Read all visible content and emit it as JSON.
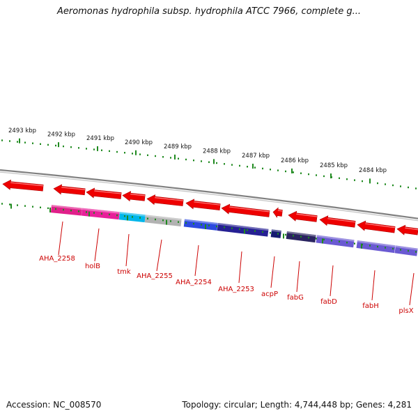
{
  "title": "Aeromonas hydrophila subsp. hydrophila ATCC 7966, complete g...",
  "accession_text": "Accession: NC_008570",
  "topology_text": "Topology: circular; Length: 4,744,448 bp; Genes: 4,281",
  "colors": {
    "arrow": "#ee0000",
    "label": "#cc0000",
    "backbone": "#808080",
    "tick": "#1f8a1f"
  },
  "scale_labels": [
    "2493 kbp",
    "2492 kbp",
    "2491 kbp",
    "2490 kbp",
    "2489 kbp",
    "2488 kbp",
    "2487 kbp",
    "2486 kbp",
    "2485 kbp",
    "2484 kbp"
  ],
  "arrows": [
    {
      "x1": 4,
      "x2": 62
    },
    {
      "x1": 77,
      "x2": 122
    },
    {
      "x1": 124,
      "x2": 174
    },
    {
      "x1": 176,
      "x2": 208
    },
    {
      "x1": 211,
      "x2": 263
    },
    {
      "x1": 267,
      "x2": 316
    },
    {
      "x1": 318,
      "x2": 387
    },
    {
      "x1": 392,
      "x2": 405
    },
    {
      "x1": 414,
      "x2": 455
    },
    {
      "x1": 459,
      "x2": 510
    },
    {
      "x1": 513,
      "x2": 567
    },
    {
      "x1": 570,
      "x2": 600
    }
  ],
  "bars": [
    {
      "x1": 74,
      "x2": 118,
      "color": "#e0208a"
    },
    {
      "x1": 118,
      "x2": 172,
      "color": "#e8209a"
    },
    {
      "x1": 172,
      "x2": 209,
      "color": "#00b6ea"
    },
    {
      "x1": 209,
      "x2": 261,
      "color": "#b2b2b2"
    },
    {
      "x1": 265,
      "x2": 313,
      "color": "#2c4adf"
    },
    {
      "x1": 313,
      "x2": 386,
      "color": "#252093"
    },
    {
      "x1": 390,
      "x2": 404,
      "color": "#141a70"
    },
    {
      "x1": 412,
      "x2": 454,
      "color": "#2a2460"
    },
    {
      "x1": 455,
      "x2": 509,
      "color": "#6a5ad2"
    },
    {
      "x1": 513,
      "x2": 568,
      "color": "#6a5ad2"
    },
    {
      "x1": 568,
      "x2": 600,
      "color": "#6a5ad2"
    }
  ],
  "genes": [
    {
      "name": "AHA_2258"
    },
    {
      "name": "holB"
    },
    {
      "name": "tmk"
    },
    {
      "name": "AHA_2255"
    },
    {
      "name": "AHA_2254"
    },
    {
      "name": "AHA_2253"
    },
    {
      "name": "acpP"
    },
    {
      "name": "fabG"
    },
    {
      "name": "fabD"
    },
    {
      "name": "fabH"
    },
    {
      "name": "plsX"
    }
  ]
}
